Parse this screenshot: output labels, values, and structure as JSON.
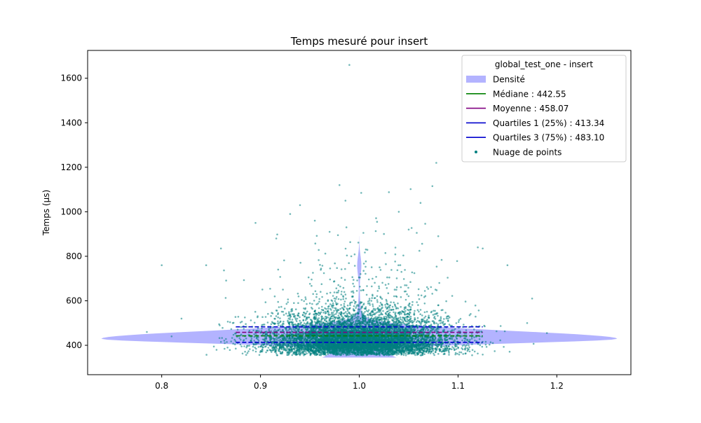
{
  "chart_data": {
    "type": "scatter",
    "title": "Temps mesuré pour insert",
    "xlabel": "",
    "ylabel": "Temps (µs)",
    "xlim": [
      0.725,
      1.275
    ],
    "ylim": [
      268,
      1725
    ],
    "xticks": [
      0.8,
      0.9,
      1.0,
      1.1,
      1.2
    ],
    "xtick_labels": [
      "0.8",
      "0.9",
      "1.0",
      "1.1",
      "1.2"
    ],
    "yticks": [
      400,
      600,
      800,
      1000,
      1200,
      1400,
      1600
    ],
    "ytick_labels": [
      "400",
      "600",
      "800",
      "1000",
      "1200",
      "1400",
      "1600"
    ],
    "grid": false,
    "legend": {
      "title": "global_test_one - insert",
      "placement": "top-right",
      "entries": [
        {
          "label": "Densité",
          "kind": "patch",
          "color": "#b3b3ff"
        },
        {
          "label": "Médiane : 442.55",
          "kind": "line",
          "color": "#008000"
        },
        {
          "label": "Moyenne : 458.07",
          "kind": "line",
          "color": "#800080"
        },
        {
          "label": "Quartiles 1 (25%) : 413.34",
          "kind": "line",
          "color": "#0000cd"
        },
        {
          "label": "Quartiles 3 (75%) : 483.10",
          "kind": "line",
          "color": "#0000cd"
        },
        {
          "label": "Nuage de points",
          "kind": "marker",
          "color": "#008080"
        }
      ]
    },
    "stats": {
      "median": 442.55,
      "mean": 458.07,
      "q1": 413.34,
      "q3": 483.1
    },
    "stat_lines": {
      "x_range": [
        0.875,
        1.125
      ]
    },
    "density": {
      "color": "#b3b3ff",
      "x_center": 1.0,
      "half_width_max": 0.25,
      "peak_y": 430,
      "tail_top": 1230,
      "bottom": 345
    },
    "scatter": {
      "color": "#008080",
      "count": 9000,
      "x_center": 1.0,
      "x_spread": 0.045,
      "x_range": [
        0.78,
        1.22
      ],
      "y_mode": 430,
      "y_floor": 345,
      "outliers": [
        {
          "x": 0.99,
          "y": 1660
        },
        {
          "x": 1.078,
          "y": 1220
        },
        {
          "x": 0.98,
          "y": 1120
        },
        {
          "x": 1.074,
          "y": 1115
        },
        {
          "x": 1.052,
          "y": 1102
        },
        {
          "x": 1.002,
          "y": 1085
        },
        {
          "x": 1.03,
          "y": 1088
        },
        {
          "x": 0.986,
          "y": 1050
        },
        {
          "x": 0.94,
          "y": 1030
        },
        {
          "x": 1.062,
          "y": 1040
        },
        {
          "x": 1.04,
          "y": 1000
        },
        {
          "x": 0.93,
          "y": 990
        },
        {
          "x": 0.895,
          "y": 950
        },
        {
          "x": 0.955,
          "y": 960
        },
        {
          "x": 1.018,
          "y": 955
        },
        {
          "x": 0.987,
          "y": 930
        },
        {
          "x": 1.05,
          "y": 920
        },
        {
          "x": 0.97,
          "y": 910
        },
        {
          "x": 1.08,
          "y": 890
        },
        {
          "x": 0.916,
          "y": 880
        },
        {
          "x": 0.86,
          "y": 835
        },
        {
          "x": 0.8,
          "y": 760
        },
        {
          "x": 0.845,
          "y": 760
        },
        {
          "x": 1.12,
          "y": 840
        },
        {
          "x": 1.125,
          "y": 835
        },
        {
          "x": 1.15,
          "y": 760
        },
        {
          "x": 1.175,
          "y": 610
        },
        {
          "x": 0.82,
          "y": 520
        },
        {
          "x": 0.785,
          "y": 460
        },
        {
          "x": 0.81,
          "y": 440
        },
        {
          "x": 1.19,
          "y": 455
        },
        {
          "x": 1.17,
          "y": 500
        }
      ]
    }
  }
}
